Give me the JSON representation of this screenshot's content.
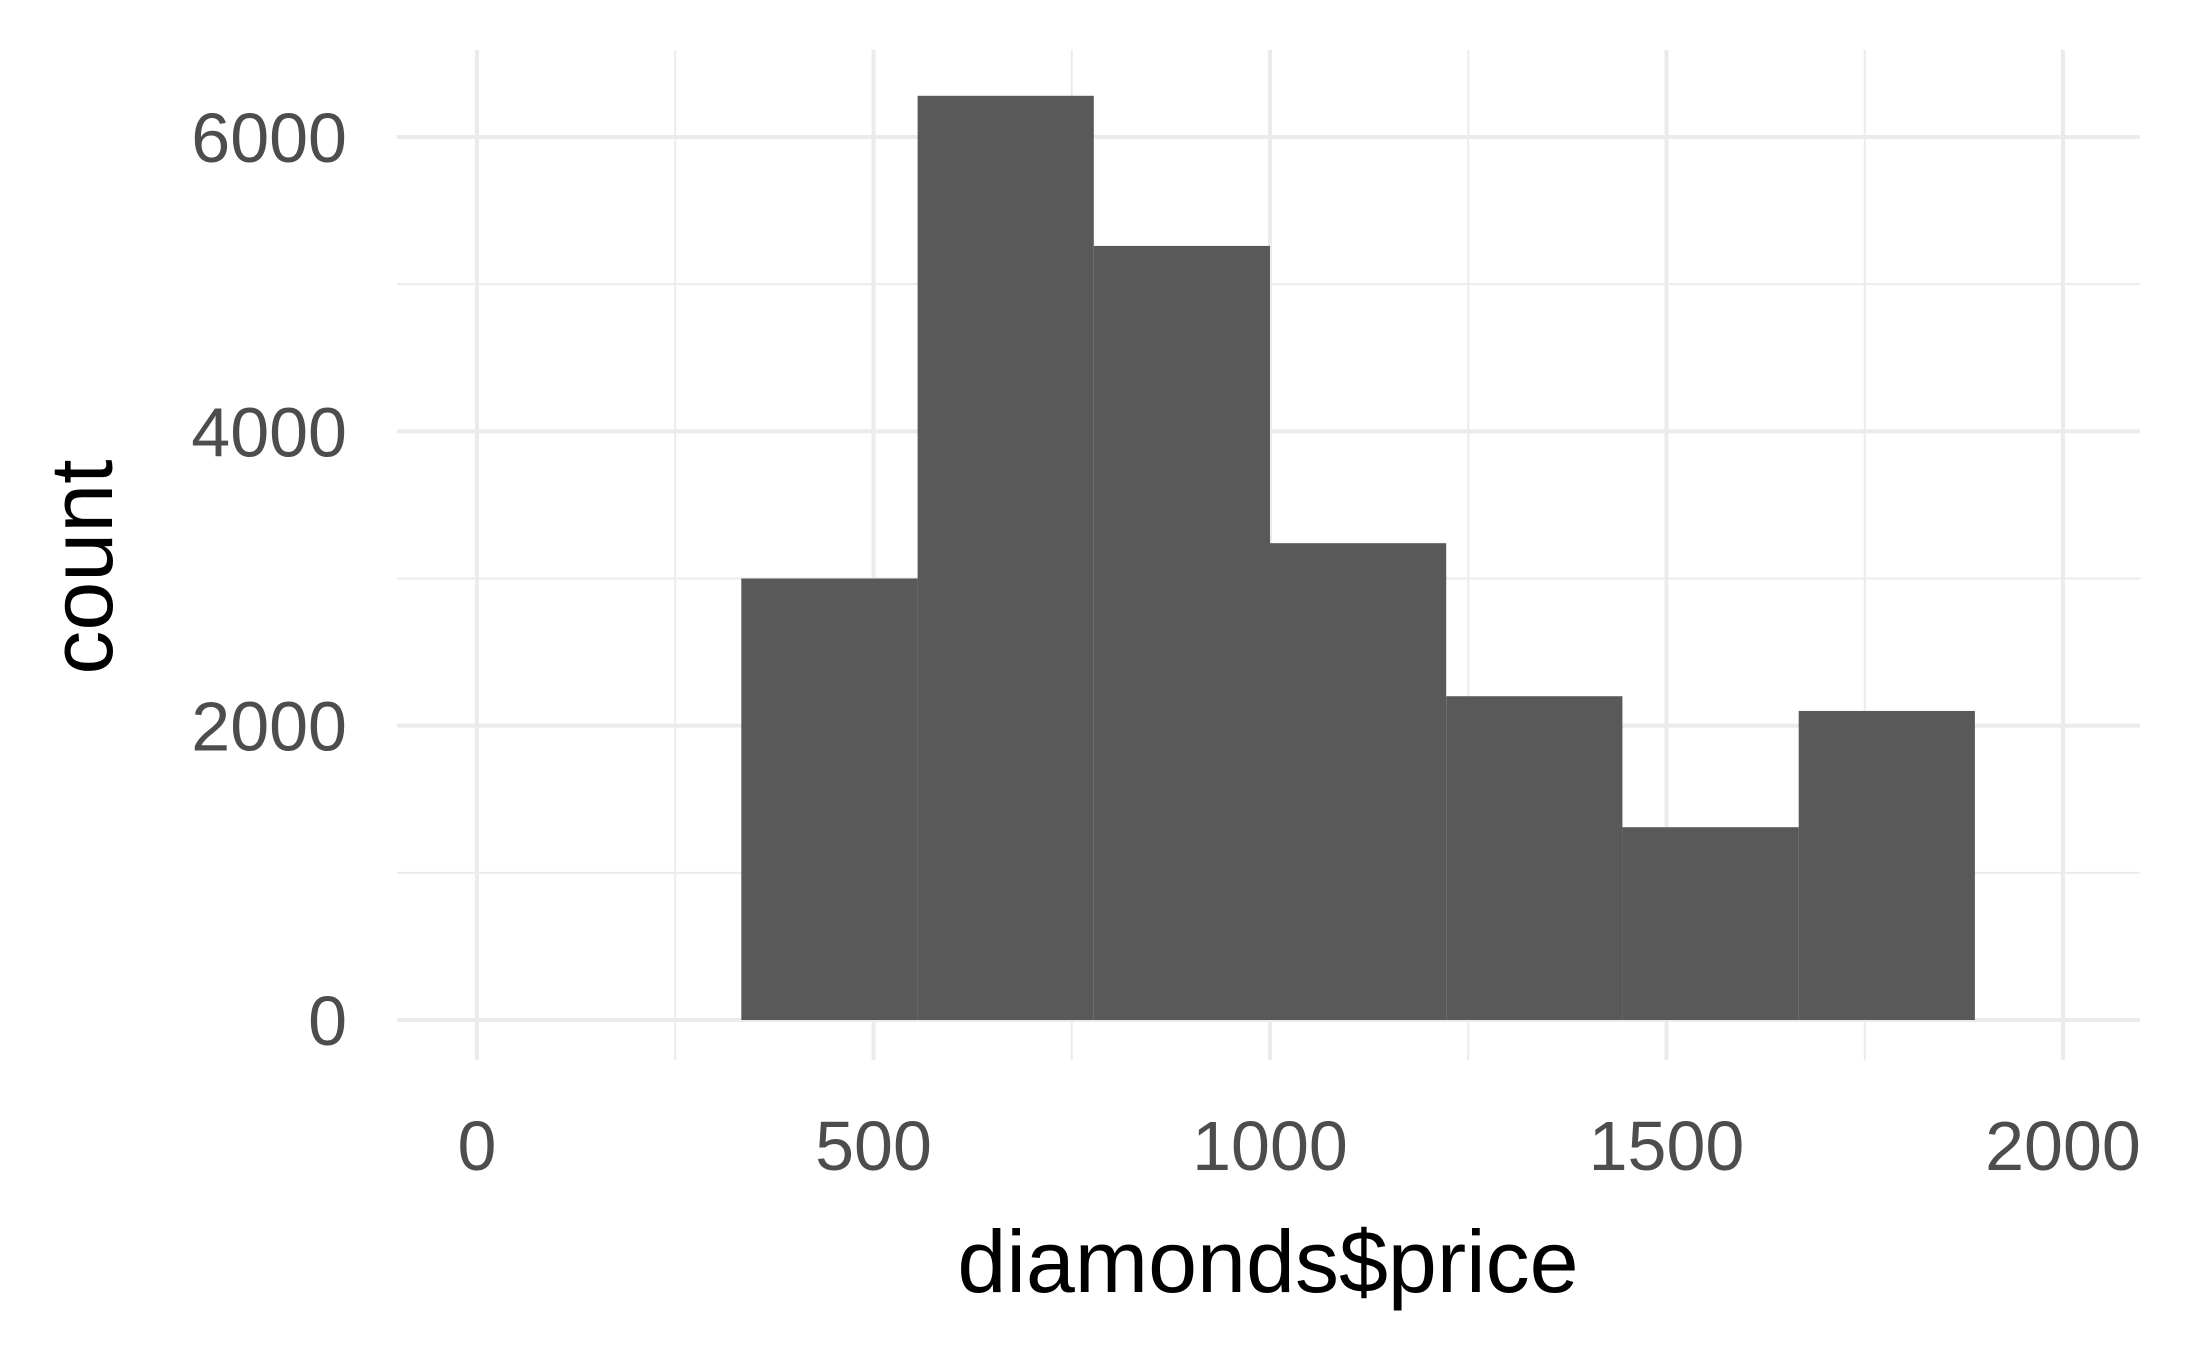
{
  "chart_data": {
    "type": "bar",
    "title": "",
    "xlabel": "diamonds$price",
    "ylabel": "count",
    "xlim": [
      -100,
      2100
    ],
    "ylim": [
      -300,
      6600
    ],
    "x_ticks": [
      0,
      500,
      1000,
      1500,
      2000
    ],
    "x_tick_labels": [
      "0",
      "500",
      "1000",
      "1500",
      "2000"
    ],
    "y_ticks": [
      0,
      2000,
      4000,
      6000
    ],
    "y_tick_labels": [
      "0",
      "2000",
      "4000",
      "6000"
    ],
    "grid": true,
    "legend": "none",
    "bar_color": "#595959",
    "grid_color": "#ebebeb",
    "bins": [
      {
        "start": 333.3,
        "end": 555.6,
        "count": 3000
      },
      {
        "start": 555.6,
        "end": 777.8,
        "count": 6280
      },
      {
        "start": 777.8,
        "end": 1000.0,
        "count": 5260
      },
      {
        "start": 1000.0,
        "end": 1222.2,
        "count": 3240
      },
      {
        "start": 1222.2,
        "end": 1444.4,
        "count": 2200
      },
      {
        "start": 1444.4,
        "end": 1666.7,
        "count": 1310
      },
      {
        "start": 1666.7,
        "end": 1888.9,
        "count": 2100
      }
    ]
  }
}
